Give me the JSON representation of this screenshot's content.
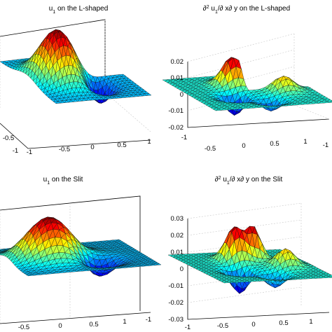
{
  "chart_data": [
    {
      "type": "surface",
      "title_parts": {
        "base": "u",
        "sub": "1",
        "rest": " on the L-shaped"
      },
      "z_ticks": [],
      "x_ticks": [
        "-1",
        "-0.5",
        "0",
        "0.5",
        "1"
      ],
      "y_ticks": [
        "-0.5",
        "-1"
      ],
      "domain": "L-shaped",
      "surface": "bump-with-dip"
    },
    {
      "type": "surface",
      "title_parts": {
        "pre": "∂",
        "sup": "2",
        "base": " u",
        "sub": "1",
        "rest": "/∂ x∂ y on the L-shaped"
      },
      "z_ticks": [
        "0.02",
        "0.01",
        "0",
        "-0.01",
        "-0.02"
      ],
      "x_ticks": [
        "-1",
        "-0.5",
        "0",
        "0.5",
        "1"
      ],
      "y_ticks": [
        "-1"
      ],
      "domain": "L-shaped",
      "surface": "mixed-derivative"
    },
    {
      "type": "surface",
      "title_parts": {
        "base": "u",
        "sub": "1",
        "rest": " on the Slit"
      },
      "z_ticks": [],
      "x_ticks": [
        "-0.5",
        "0",
        "0.5",
        "1"
      ],
      "y_ticks": [
        "-1"
      ],
      "domain": "Slit",
      "surface": "bump-with-dip"
    },
    {
      "type": "surface",
      "title_parts": {
        "pre": "∂",
        "sup": "2",
        "base": " u",
        "sub": "1",
        "rest": "/∂ x∂ y on the Slit"
      },
      "z_ticks": [
        "0.03",
        "0.02",
        "0.01",
        "0",
        "-0.01",
        "-0.02",
        "-0.03"
      ],
      "x_ticks": [
        "-1",
        "-0.5",
        "0",
        "0.5",
        "1"
      ],
      "y_ticks": [],
      "domain": "Slit",
      "surface": "mixed-derivative"
    }
  ],
  "colormap": [
    "#00007f",
    "#0000ff",
    "#007fff",
    "#00ffff",
    "#7fff7f",
    "#ffff00",
    "#ff7f00",
    "#ff0000",
    "#7f0000"
  ]
}
